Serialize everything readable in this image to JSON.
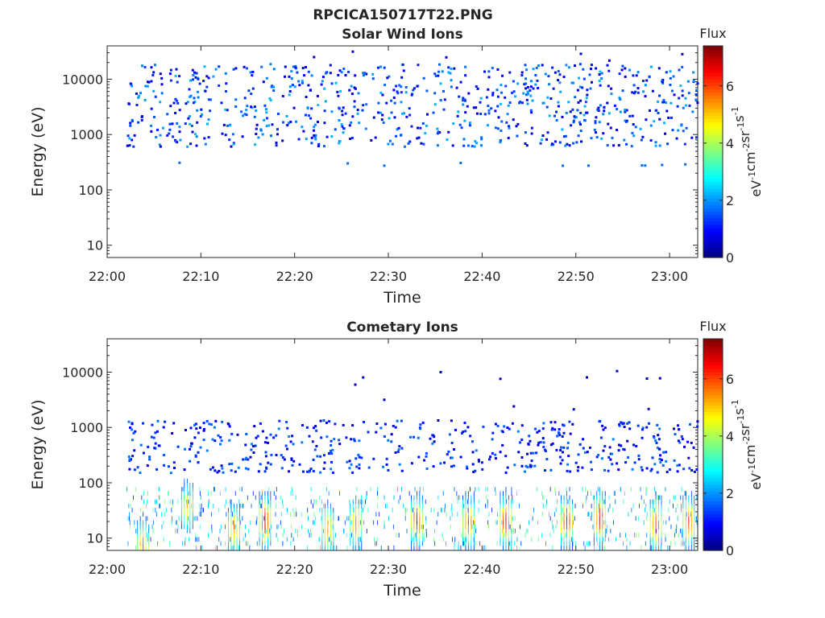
{
  "figure": {
    "title": "RPCICA150717T22.PNG"
  },
  "chart_data": [
    {
      "type": "heatmap",
      "title": "Solar Wind Ions",
      "xlabel": "Time",
      "ylabel": "Energy (eV)",
      "x_range": [
        "22:00",
        "23:03"
      ],
      "y_scale": "log",
      "ylim": [
        6,
        40000
      ],
      "x_ticks": [
        "22:00",
        "22:10",
        "22:20",
        "22:30",
        "22:40",
        "22:50",
        "23:00"
      ],
      "y_ticks": [
        "10",
        "100",
        "1000",
        "10000"
      ],
      "data_start": "22:02",
      "colorbar": {
        "title": "Flux",
        "label": "eV-1cm-2sr-1s-1",
        "ticks": [
          "0",
          "2",
          "4",
          "6"
        ],
        "range": [
          0,
          7.4
        ],
        "colormap": "jet"
      },
      "description": "Sparse blue and cyan pixels with flux about 0.5-2.5 across 22:02-23:03, concentrated between roughly 600 eV and 20000 eV; isolated pixels near 300 eV."
    },
    {
      "type": "heatmap",
      "title": "Cometary Ions",
      "xlabel": "Time",
      "ylabel": "Energy (eV)",
      "x_range": [
        "22:00",
        "23:03"
      ],
      "y_scale": "log",
      "ylim": [
        6,
        40000
      ],
      "x_ticks": [
        "22:00",
        "22:10",
        "22:20",
        "22:30",
        "22:40",
        "22:50",
        "23:00"
      ],
      "y_ticks": [
        "10",
        "100",
        "1000",
        "10000"
      ],
      "data_start": "22:02",
      "colorbar": {
        "title": "Flux",
        "label": "eV-1cm-2sr-1s-1",
        "ticks": [
          "0",
          "2",
          "4",
          "6"
        ],
        "range": [
          0,
          7.4
        ],
        "colormap": "jet"
      },
      "bursts": [
        {
          "time": "22:03.8",
          "peak_energy": 8,
          "peak_flux": 6.0
        },
        {
          "time": "22:08.5",
          "peak_energy": 40,
          "peak_flux": 5.0
        },
        {
          "time": "22:13.5",
          "peak_energy": 16,
          "peak_flux": 5.5
        },
        {
          "time": "22:16.8",
          "peak_energy": 22,
          "peak_flux": 7.0
        },
        {
          "time": "22:23.5",
          "peak_energy": 16,
          "peak_flux": 5.5
        },
        {
          "time": "22:26.5",
          "peak_energy": 20,
          "peak_flux": 6.0
        },
        {
          "time": "22:33.0",
          "peak_energy": 22,
          "peak_flux": 7.0
        },
        {
          "time": "22:38.5",
          "peak_energy": 22,
          "peak_flux": 6.5
        },
        {
          "time": "22:42.5",
          "peak_energy": 22,
          "peak_flux": 7.0
        },
        {
          "time": "22:49.0",
          "peak_energy": 22,
          "peak_flux": 7.0
        },
        {
          "time": "22:52.5",
          "peak_energy": 25,
          "peak_flux": 7.0
        },
        {
          "time": "22:58.5",
          "peak_energy": 20,
          "peak_flux": 6.5
        },
        {
          "time": "23:02.0",
          "peak_energy": 22,
          "peak_flux": 6.5
        }
      ],
      "description": "Continuous low-energy population: orange/red bursts at 10-40 eV, green/cyan at 50-100 eV, sparse blue pixels 200-1500 eV, isolated dots up to ~10000 eV."
    }
  ]
}
